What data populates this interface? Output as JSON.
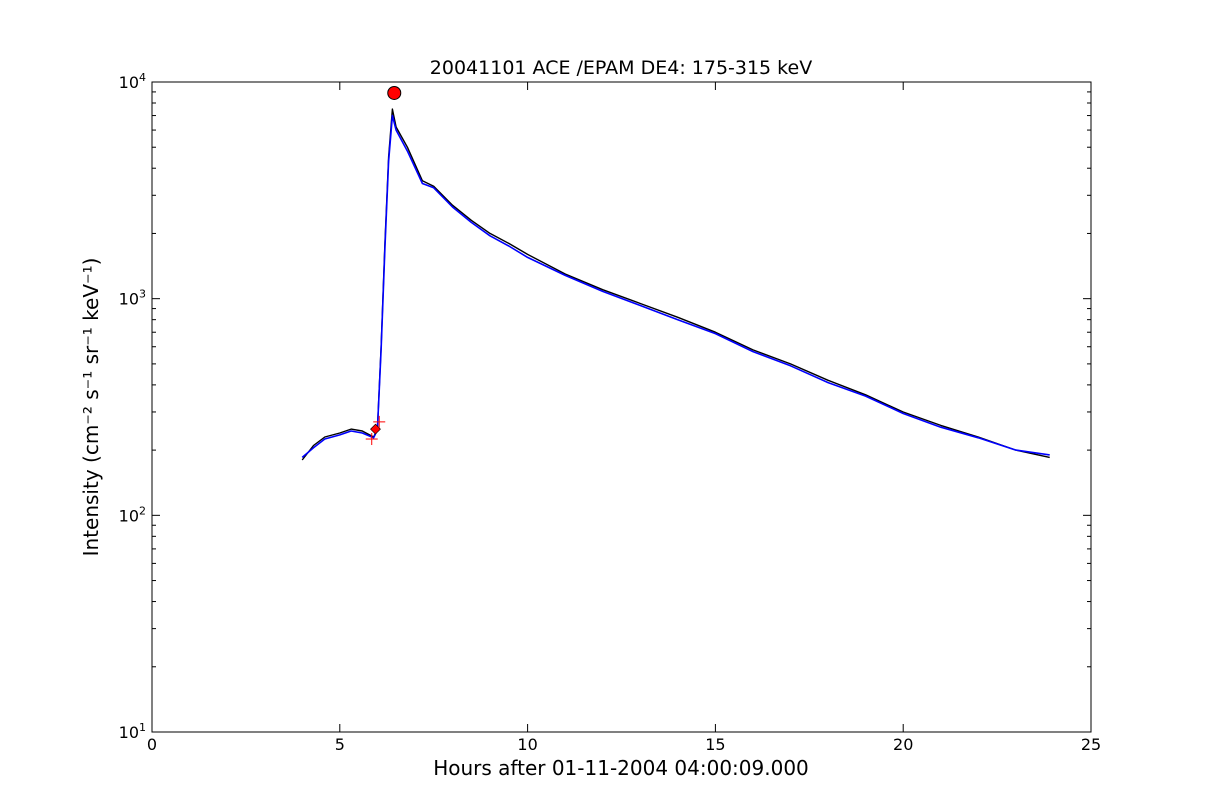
{
  "chart_data": {
    "type": "line",
    "title": "20041101 ACE /EPAM DE4: 175-315 keV",
    "xlabel": "Hours after 01-11-2004 04:00:09.000",
    "ylabel": "Intensity (cm⁻² s⁻¹ sr⁻¹ keV⁻¹)",
    "xlim": [
      0,
      25
    ],
    "ylim": [
      10,
      10000
    ],
    "yscale": "log",
    "grid": false,
    "x_ticks": [
      0,
      5,
      10,
      15,
      20,
      25
    ],
    "x_tick_labels": [
      "0",
      "5",
      "10",
      "15",
      "20",
      "25"
    ],
    "y_ticks": [
      10,
      100,
      1000,
      10000
    ],
    "y_tick_labels": [
      {
        "base": "10",
        "exp": "1"
      },
      {
        "base": "10",
        "exp": "2"
      },
      {
        "base": "10",
        "exp": "3"
      },
      {
        "base": "10",
        "exp": "4"
      }
    ],
    "series": [
      {
        "color": "#000000",
        "x": [
          4.0,
          4.3,
          4.6,
          5.0,
          5.3,
          5.6,
          5.9,
          6.0,
          6.1,
          6.2,
          6.3,
          6.4,
          6.5,
          6.8,
          7.2,
          7.5,
          8.0,
          8.5,
          9.0,
          9.5,
          10.0,
          11.0,
          12.0,
          13.0,
          14.0,
          15.0,
          16.0,
          17.0,
          18.0,
          19.0,
          20.0,
          21.0,
          22.0,
          23.0,
          23.9
        ],
        "y": [
          180,
          210,
          230,
          240,
          250,
          245,
          230,
          250,
          600,
          1800,
          4500,
          7500,
          6200,
          5000,
          3500,
          3300,
          2700,
          2300,
          2000,
          1800,
          1600,
          1300,
          1100,
          950,
          820,
          700,
          580,
          500,
          420,
          360,
          300,
          260,
          230,
          200,
          185
        ]
      },
      {
        "color": "#0000ff",
        "x": [
          4.0,
          4.3,
          4.6,
          5.0,
          5.3,
          5.6,
          5.9,
          6.0,
          6.1,
          6.2,
          6.3,
          6.4,
          6.5,
          6.8,
          7.2,
          7.5,
          8.0,
          8.5,
          9.0,
          9.5,
          10.0,
          11.0,
          12.0,
          13.0,
          14.0,
          15.0,
          16.0,
          17.0,
          18.0,
          19.0,
          20.0,
          21.0,
          22.0,
          23.0,
          23.9
        ],
        "y": [
          185,
          205,
          225,
          235,
          245,
          240,
          228,
          248,
          580,
          1700,
          4300,
          7000,
          6000,
          4800,
          3400,
          3250,
          2650,
          2250,
          1950,
          1750,
          1550,
          1280,
          1080,
          930,
          800,
          690,
          570,
          490,
          410,
          355,
          295,
          255,
          228,
          200,
          190
        ]
      }
    ],
    "markers": [
      {
        "shape": "circle",
        "color": "#ff0000",
        "x": 6.45,
        "y": 8900
      },
      {
        "shape": "diamond",
        "color": "#ff0000",
        "x": 5.95,
        "y": 250
      },
      {
        "shape": "plus",
        "color": "#ff0000",
        "x": 6.05,
        "y": 270
      },
      {
        "shape": "plus",
        "color": "#ff0000",
        "x": 5.85,
        "y": 225
      }
    ]
  }
}
